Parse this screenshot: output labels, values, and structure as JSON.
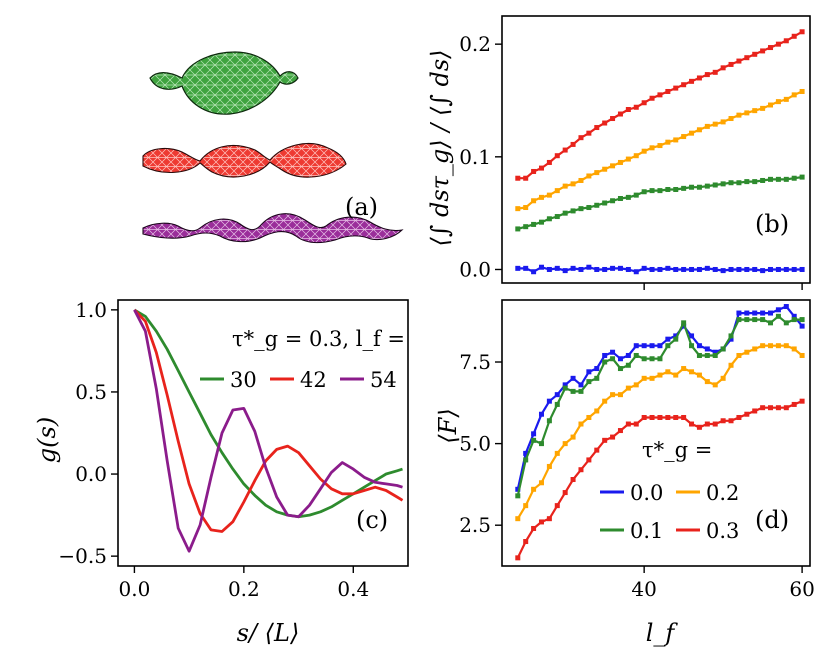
{
  "chart_data": [
    {
      "panel": "(a)",
      "type": "other",
      "colors": [
        "#2e8b2e",
        "#e8231c",
        "#8b1c8b"
      ]
    },
    {
      "panel": "(b)",
      "type": "line",
      "ylabel": "⟨∫ dsτ_g⟩ / ⟨∫ ds⟩",
      "xlim": [
        22,
        61
      ],
      "ylim": [
        -0.012,
        0.225
      ],
      "yticks": [
        "0.0",
        "0.1",
        "0.2"
      ],
      "x": [
        24,
        25,
        26,
        27,
        28,
        29,
        30,
        31,
        32,
        33,
        34,
        35,
        36,
        37,
        38,
        39,
        40,
        41,
        42,
        43,
        44,
        45,
        46,
        47,
        48,
        49,
        50,
        51,
        52,
        53,
        54,
        55,
        56,
        57,
        58,
        59,
        60
      ],
      "series": [
        {
          "color": "#1a1aee",
          "values": [
            0.001,
            0.001,
            -0.002,
            0.002,
            0.0,
            0.001,
            -0.001,
            0.001,
            0.0,
            0.002,
            0.0,
            0.0,
            0.001,
            0.001,
            0.0,
            -0.002,
            0.001,
            0.0,
            0.0,
            0.001,
            0.0,
            0.0,
            0.0,
            0.0,
            0.001,
            0.0,
            -0.001,
            0.0,
            0.0,
            0.0,
            0.0,
            -0.001,
            0.0,
            0.0,
            0.0,
            0.0,
            0.0
          ]
        },
        {
          "color": "#2e8b2e",
          "values": [
            0.036,
            0.038,
            0.04,
            0.042,
            0.045,
            0.047,
            0.05,
            0.052,
            0.054,
            0.055,
            0.057,
            0.059,
            0.061,
            0.063,
            0.064,
            0.066,
            0.069,
            0.07,
            0.07,
            0.071,
            0.071,
            0.072,
            0.073,
            0.073,
            0.074,
            0.075,
            0.076,
            0.077,
            0.077,
            0.078,
            0.078,
            0.079,
            0.08,
            0.08,
            0.08,
            0.081,
            0.082
          ]
        },
        {
          "color": "#ffa500",
          "values": [
            0.054,
            0.055,
            0.061,
            0.064,
            0.066,
            0.07,
            0.074,
            0.076,
            0.079,
            0.083,
            0.086,
            0.089,
            0.092,
            0.095,
            0.098,
            0.101,
            0.105,
            0.108,
            0.11,
            0.113,
            0.115,
            0.118,
            0.121,
            0.124,
            0.127,
            0.129,
            0.131,
            0.134,
            0.137,
            0.139,
            0.141,
            0.143,
            0.146,
            0.149,
            0.151,
            0.155,
            0.158
          ]
        },
        {
          "color": "#e8231c",
          "values": [
            0.081,
            0.081,
            0.087,
            0.09,
            0.095,
            0.101,
            0.106,
            0.111,
            0.117,
            0.121,
            0.126,
            0.13,
            0.134,
            0.138,
            0.142,
            0.144,
            0.148,
            0.152,
            0.155,
            0.158,
            0.161,
            0.164,
            0.167,
            0.17,
            0.173,
            0.175,
            0.179,
            0.182,
            0.185,
            0.188,
            0.191,
            0.194,
            0.197,
            0.2,
            0.203,
            0.207,
            0.211
          ]
        }
      ]
    },
    {
      "panel": "(c)",
      "type": "line",
      "xlabel": "s/ ⟨L⟩",
      "ylabel": "g(s)",
      "xlim": [
        -0.03,
        0.5
      ],
      "ylim": [
        -0.56,
        1.06
      ],
      "xticks": [
        "0.0",
        "0.2",
        "0.4"
      ],
      "yticks": [
        "−0.5",
        "0.0",
        "0.5",
        "1.0"
      ],
      "legend_title": "τ*_g = 0.3, l_f =",
      "x": [
        0.0,
        0.02,
        0.04,
        0.06,
        0.08,
        0.1,
        0.12,
        0.14,
        0.16,
        0.18,
        0.2,
        0.22,
        0.24,
        0.26,
        0.28,
        0.3,
        0.32,
        0.34,
        0.36,
        0.38,
        0.4,
        0.42,
        0.44,
        0.46,
        0.48,
        0.49
      ],
      "series": [
        {
          "name": "30",
          "color": "#2e8b2e",
          "values": [
            1.0,
            0.96,
            0.87,
            0.76,
            0.63,
            0.5,
            0.37,
            0.24,
            0.13,
            0.03,
            -0.06,
            -0.13,
            -0.19,
            -0.23,
            -0.25,
            -0.26,
            -0.25,
            -0.23,
            -0.2,
            -0.16,
            -0.12,
            -0.08,
            -0.04,
            0.0,
            0.02,
            0.03
          ]
        },
        {
          "name": "42",
          "color": "#e8231c",
          "values": [
            1.0,
            0.93,
            0.74,
            0.48,
            0.2,
            -0.06,
            -0.24,
            -0.34,
            -0.35,
            -0.29,
            -0.17,
            -0.04,
            0.08,
            0.15,
            0.17,
            0.13,
            0.05,
            -0.03,
            -0.09,
            -0.12,
            -0.12,
            -0.1,
            -0.08,
            -0.1,
            -0.14,
            -0.16
          ]
        },
        {
          "name": "54",
          "color": "#8b1c8b",
          "values": [
            1.0,
            0.87,
            0.52,
            0.08,
            -0.33,
            -0.47,
            -0.31,
            -0.02,
            0.25,
            0.39,
            0.4,
            0.26,
            0.04,
            -0.14,
            -0.25,
            -0.26,
            -0.19,
            -0.09,
            0.01,
            0.07,
            0.03,
            -0.02,
            -0.05,
            -0.06,
            -0.07,
            -0.08
          ]
        }
      ]
    },
    {
      "panel": "(d)",
      "type": "line",
      "xlabel": "l_f",
      "ylabel": "⟨F⟩",
      "xlim": [
        22,
        61
      ],
      "ylim": [
        1.25,
        9.4
      ],
      "xticks": [
        "40",
        "60"
      ],
      "yticks": [
        "2.5",
        "5.0",
        "7.5"
      ],
      "legend_title": "τ*_g =",
      "x": [
        24,
        25,
        26,
        27,
        28,
        29,
        30,
        31,
        32,
        33,
        34,
        35,
        36,
        37,
        38,
        39,
        40,
        41,
        42,
        43,
        44,
        45,
        46,
        47,
        48,
        49,
        50,
        51,
        52,
        53,
        54,
        55,
        56,
        57,
        58,
        59,
        60
      ],
      "series": [
        {
          "name": "0.0",
          "color": "#1a1aee",
          "values": [
            3.6,
            4.7,
            5.3,
            5.9,
            6.3,
            6.5,
            6.8,
            7.0,
            6.8,
            7.2,
            7.3,
            7.7,
            7.8,
            7.6,
            7.7,
            8.0,
            8.0,
            8.0,
            8.0,
            8.2,
            8.3,
            8.6,
            8.3,
            8.0,
            7.9,
            7.8,
            7.9,
            8.2,
            9.0,
            9.0,
            9.0,
            9.0,
            9.0,
            9.1,
            9.2,
            8.9,
            8.6
          ]
        },
        {
          "name": "0.1",
          "color": "#2e8b2e",
          "values": [
            3.4,
            4.5,
            5.1,
            5.0,
            5.7,
            6.2,
            6.7,
            6.6,
            6.6,
            6.9,
            7.0,
            7.5,
            7.6,
            7.3,
            7.4,
            7.7,
            7.6,
            7.6,
            7.6,
            8.0,
            8.2,
            8.7,
            8.0,
            7.7,
            7.7,
            7.7,
            7.9,
            8.3,
            8.8,
            8.8,
            8.8,
            8.8,
            8.7,
            8.9,
            8.7,
            8.8,
            8.8
          ]
        },
        {
          "name": "0.2",
          "color": "#ffa500",
          "values": [
            2.7,
            3.1,
            3.6,
            3.8,
            4.3,
            4.7,
            5.0,
            5.2,
            5.6,
            5.8,
            6.0,
            6.3,
            6.5,
            6.5,
            6.7,
            6.8,
            7.0,
            7.0,
            7.1,
            7.2,
            7.1,
            7.3,
            7.2,
            7.1,
            6.9,
            6.8,
            7.0,
            7.4,
            7.7,
            7.8,
            7.9,
            8.0,
            8.0,
            8.0,
            8.0,
            7.9,
            7.7
          ]
        },
        {
          "name": "0.3",
          "color": "#e8231c",
          "values": [
            1.5,
            2.0,
            2.4,
            2.6,
            2.7,
            3.1,
            3.5,
            3.9,
            4.2,
            4.5,
            4.8,
            5.1,
            5.2,
            5.4,
            5.6,
            5.6,
            5.8,
            5.8,
            5.8,
            5.8,
            5.8,
            5.8,
            5.6,
            5.5,
            5.6,
            5.6,
            5.7,
            5.7,
            5.8,
            5.9,
            6.0,
            6.1,
            6.1,
            6.1,
            6.1,
            6.2,
            6.3
          ]
        }
      ]
    }
  ]
}
